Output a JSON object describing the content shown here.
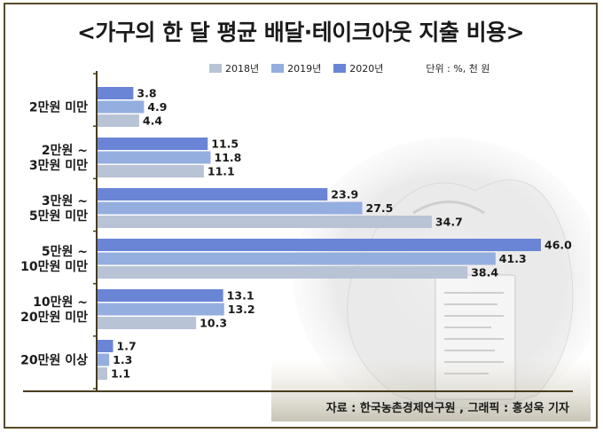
{
  "title": "<가구의 한 달 평균 배달·테이크아웃 지출 비용>",
  "unit": "단위 : %, 천 원",
  "source": "자료 : 한국농촌경제연구원 , 그래픽 : 홍성욱 기자",
  "colors": {
    "2020": "#6a85d6",
    "2019": "#95aee0",
    "2018": "#b9c3d6",
    "axis": "#4a3c1e"
  },
  "chart_data": {
    "type": "bar",
    "orientation": "horizontal",
    "title": "<가구의 한 달 평균 배달·테이크아웃 지출 비용>",
    "categories": [
      [
        "2만원 미만"
      ],
      [
        "2만원 ~",
        "3만원 미만"
      ],
      [
        "3만원 ~",
        "5만원 미만"
      ],
      [
        "5만원 ~",
        "10만원 미만"
      ],
      [
        "10만원 ~",
        "20만원 미만"
      ],
      [
        "20만원 이상"
      ]
    ],
    "series": [
      {
        "name": "2020년",
        "values": [
          3.8,
          11.5,
          23.9,
          46.0,
          13.1,
          1.7
        ]
      },
      {
        "name": "2019년",
        "values": [
          4.9,
          11.8,
          27.5,
          41.3,
          13.2,
          1.3
        ]
      },
      {
        "name": "2018년",
        "values": [
          4.4,
          11.1,
          34.7,
          38.4,
          10.3,
          1.1
        ]
      }
    ],
    "legend_order": [
      "2018년",
      "2019년",
      "2020년"
    ],
    "xlim": [
      0,
      46.0
    ],
    "legend": "top-center",
    "grid": false
  }
}
